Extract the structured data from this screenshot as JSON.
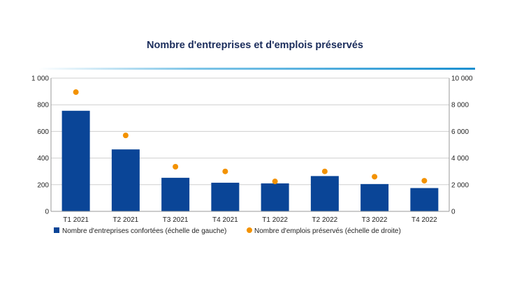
{
  "chart_data": {
    "type": "bar",
    "title": "Nombre d'entreprises et d'emplois préservés",
    "categories": [
      "T1 2021",
      "T2 2021",
      "T3 2021",
      "T4 2021",
      "T1 2022",
      "T2 2022",
      "T3 2022",
      "T4 2022"
    ],
    "series": [
      {
        "name": "Nombre d'entreprises confortées (échelle de gauche)",
        "type": "bar",
        "axis": "left",
        "color": "#0a4597",
        "values": [
          755,
          465,
          252,
          215,
          210,
          265,
          205,
          175
        ]
      },
      {
        "name": "Nombre d'emplois préservés (échelle de droite)",
        "type": "scatter",
        "axis": "right",
        "color": "#f39200",
        "values": [
          8950,
          5700,
          3350,
          3000,
          2250,
          3000,
          2600,
          2300
        ]
      }
    ],
    "yleft": {
      "lim": [
        0,
        1000
      ],
      "ticks": [
        "0",
        "200",
        "400",
        "600",
        "800",
        "1 000"
      ]
    },
    "yright": {
      "lim": [
        0,
        10000
      ],
      "ticks": [
        "0",
        "2 000",
        "4 000",
        "6 000",
        "8 000",
        "10 000"
      ]
    },
    "grid": true,
    "legend": "bottom-left",
    "colors": {
      "bar": "#0a4597",
      "dot": "#f39200",
      "title": "#1a2c5b",
      "rule": "#2a9fd8"
    }
  }
}
